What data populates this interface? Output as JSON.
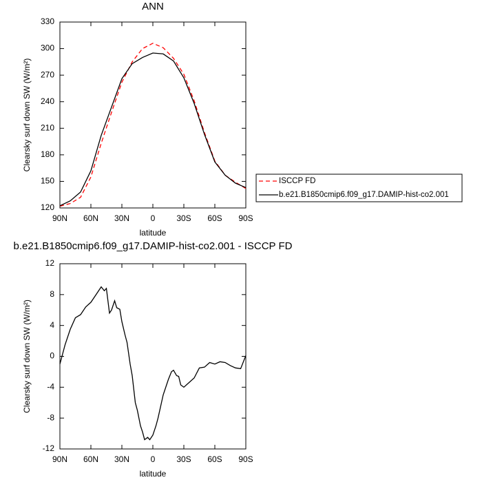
{
  "chart_data": [
    {
      "type": "line",
      "title": "ANN",
      "x_label": "latitude",
      "y_label": "Clearsky surf down SW (W/m²)",
      "x": [
        90,
        80,
        70,
        60,
        50,
        40,
        30,
        20,
        10,
        0,
        -10,
        -20,
        -30,
        -40,
        -50,
        -60,
        -70,
        -80,
        -90
      ],
      "series": [
        {
          "name": "ISCCP FD",
          "color": "#ff0000",
          "linestyle": "dashed",
          "values": [
            122,
            125,
            132,
            155,
            193,
            228,
            262,
            285,
            300,
            306,
            301,
            289,
            271,
            241,
            205,
            173,
            157,
            149,
            142
          ]
        },
        {
          "name": "b.e21.B1850cmip6.f09_g17.DAMIP-hist-co2.001",
          "color": "#000000",
          "linestyle": "solid",
          "values": [
            122.5,
            128,
            138,
            162,
            202,
            234,
            266,
            283,
            290,
            295,
            294,
            286,
            267,
            238,
            203,
            172,
            157,
            148,
            143
          ]
        }
      ],
      "xlim": [
        90,
        -90
      ],
      "xticks": [
        {
          "value": 90,
          "label": "90N"
        },
        {
          "value": 60,
          "label": "60N"
        },
        {
          "value": 30,
          "label": "30N"
        },
        0,
        {
          "value": -30,
          "label": "30S"
        },
        {
          "value": -60,
          "label": "60S"
        },
        {
          "value": -90,
          "label": "90S"
        }
      ],
      "ylim": [
        120,
        330
      ],
      "yticks": [
        120,
        150,
        180,
        210,
        240,
        270,
        300,
        330
      ],
      "legend": "right"
    },
    {
      "type": "line",
      "title": "b.e21.B1850cmip6.f09_g17.DAMIP-hist-co2.001 - ISCCP FD",
      "x_label": "latitude",
      "y_label": "Clearsky surf down SW (W/m²)",
      "x": [
        90,
        85,
        80,
        75,
        70,
        65,
        60,
        55,
        50,
        47,
        45,
        42,
        40,
        37,
        35,
        32,
        30,
        27,
        25,
        22,
        20,
        17,
        15,
        12,
        10,
        8,
        5,
        3,
        0,
        -3,
        -5,
        -10,
        -15,
        -18,
        -20,
        -23,
        -25,
        -27,
        -30,
        -35,
        -40,
        -45,
        -50,
        -55,
        -60,
        -65,
        -70,
        -75,
        -80,
        -85,
        -90
      ],
      "values": [
        -1,
        1.5,
        3.5,
        5,
        5.4,
        6.4,
        7,
        8,
        9,
        8.5,
        8.8,
        5.6,
        6,
        7.2,
        6.3,
        6.1,
        4.5,
        2.8,
        1.8,
        -1,
        -2.5,
        -6,
        -7,
        -9,
        -9.8,
        -10.8,
        -10.5,
        -10.8,
        -10.2,
        -9,
        -8,
        -5,
        -3,
        -2,
        -1.8,
        -2.5,
        -2.6,
        -3.7,
        -4,
        -3.4,
        -2.8,
        -1.5,
        -1.4,
        -0.8,
        -1,
        -0.7,
        -0.8,
        -1.2,
        -1.5,
        -1.6,
        0.1
      ],
      "color": "#000000",
      "xlim": [
        90,
        -90
      ],
      "xticks": [
        {
          "value": 90,
          "label": "90N"
        },
        {
          "value": 60,
          "label": "60N"
        },
        {
          "value": 30,
          "label": "30N"
        },
        0,
        {
          "value": -30,
          "label": "30S"
        },
        {
          "value": -60,
          "label": "60S"
        },
        {
          "value": -90,
          "label": "90S"
        }
      ],
      "ylim": [
        -12,
        12
      ],
      "yticks": [
        -12,
        -8,
        -4,
        0,
        4,
        8,
        12
      ]
    }
  ]
}
